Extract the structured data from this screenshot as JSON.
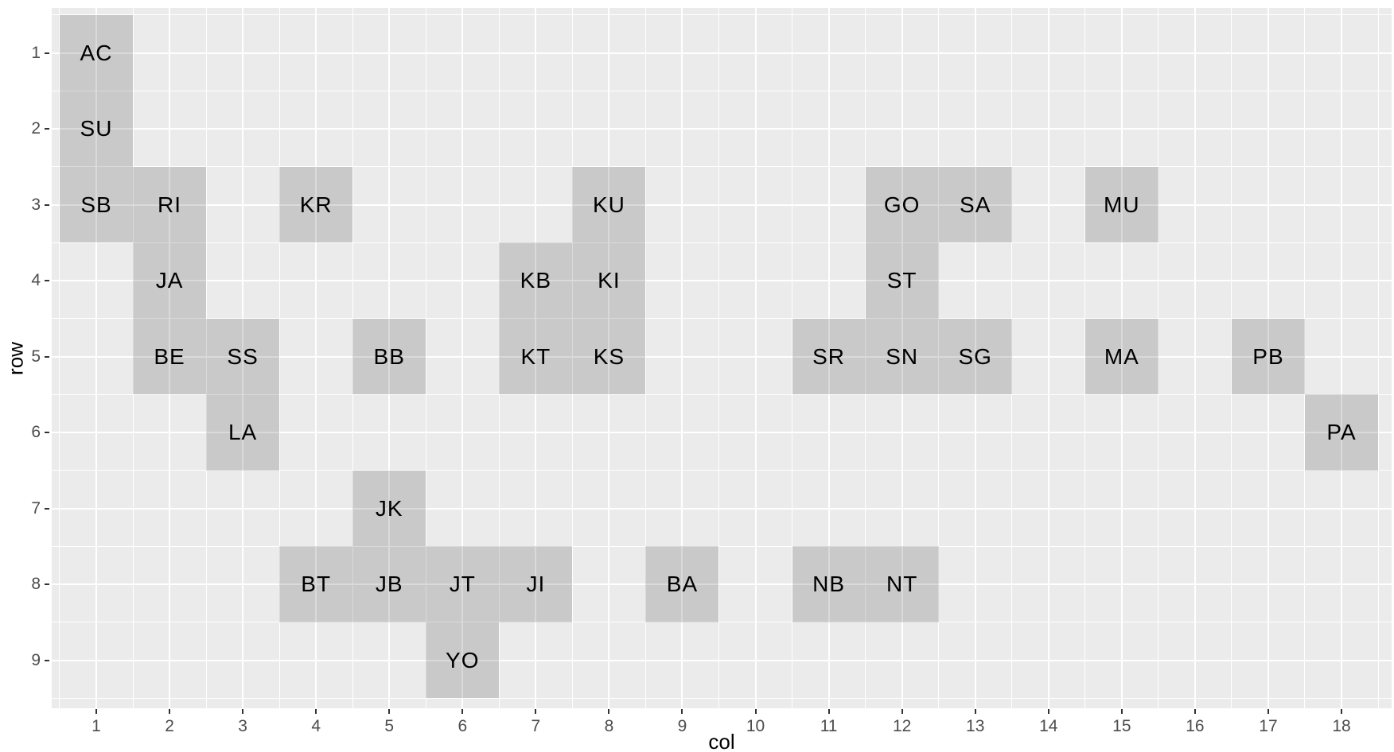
{
  "chart_data": {
    "type": "heatmap",
    "title": "",
    "xlabel": "col",
    "ylabel": "row",
    "x_ticks": [
      1,
      2,
      3,
      4,
      5,
      6,
      7,
      8,
      9,
      10,
      11,
      12,
      13,
      14,
      15,
      16,
      17,
      18
    ],
    "y_ticks": [
      1,
      2,
      3,
      4,
      5,
      6,
      7,
      8,
      9
    ],
    "x_range": [
      0.5,
      18.5
    ],
    "y_range": [
      0.5,
      9.5
    ],
    "y_axis_reversed": true,
    "grid": true,
    "legend": "none",
    "tiles": [
      {
        "col": 1,
        "row": 1,
        "label": "AC"
      },
      {
        "col": 1,
        "row": 2,
        "label": "SU"
      },
      {
        "col": 1,
        "row": 3,
        "label": "SB"
      },
      {
        "col": 2,
        "row": 3,
        "label": "RI"
      },
      {
        "col": 4,
        "row": 3,
        "label": "KR"
      },
      {
        "col": 8,
        "row": 3,
        "label": "KU"
      },
      {
        "col": 12,
        "row": 3,
        "label": "GO"
      },
      {
        "col": 13,
        "row": 3,
        "label": "SA"
      },
      {
        "col": 15,
        "row": 3,
        "label": "MU"
      },
      {
        "col": 2,
        "row": 4,
        "label": "JA"
      },
      {
        "col": 7,
        "row": 4,
        "label": "KB"
      },
      {
        "col": 8,
        "row": 4,
        "label": "KI"
      },
      {
        "col": 12,
        "row": 4,
        "label": "ST"
      },
      {
        "col": 2,
        "row": 5,
        "label": "BE"
      },
      {
        "col": 3,
        "row": 5,
        "label": "SS"
      },
      {
        "col": 5,
        "row": 5,
        "label": "BB"
      },
      {
        "col": 7,
        "row": 5,
        "label": "KT"
      },
      {
        "col": 8,
        "row": 5,
        "label": "KS"
      },
      {
        "col": 11,
        "row": 5,
        "label": "SR"
      },
      {
        "col": 12,
        "row": 5,
        "label": "SN"
      },
      {
        "col": 13,
        "row": 5,
        "label": "SG"
      },
      {
        "col": 15,
        "row": 5,
        "label": "MA"
      },
      {
        "col": 17,
        "row": 5,
        "label": "PB"
      },
      {
        "col": 3,
        "row": 6,
        "label": "LA"
      },
      {
        "col": 18,
        "row": 6,
        "label": "PA"
      },
      {
        "col": 5,
        "row": 7,
        "label": "JK"
      },
      {
        "col": 4,
        "row": 8,
        "label": "BT"
      },
      {
        "col": 5,
        "row": 8,
        "label": "JB"
      },
      {
        "col": 6,
        "row": 8,
        "label": "JT"
      },
      {
        "col": 7,
        "row": 8,
        "label": "JI"
      },
      {
        "col": 9,
        "row": 8,
        "label": "BA"
      },
      {
        "col": 11,
        "row": 8,
        "label": "NB"
      },
      {
        "col": 12,
        "row": 8,
        "label": "NT"
      },
      {
        "col": 6,
        "row": 9,
        "label": "YO"
      }
    ],
    "colors": {
      "panel_background": "#EBEBEB",
      "gridline": "#FFFFFF",
      "tile_fill": "rgba(0,0,0,0.145)",
      "tile_fill_flat": "#CBCBCB",
      "tile_label": "#000000",
      "tick_label": "#4D4D4D",
      "tick_mark": "#333333",
      "axis_title": "#000000"
    }
  }
}
